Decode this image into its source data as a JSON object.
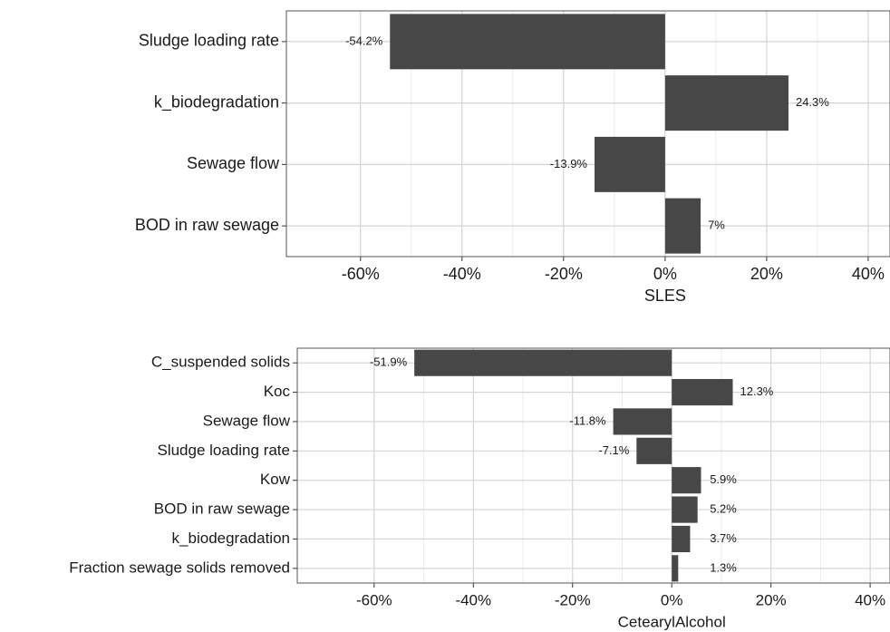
{
  "chart_data": [
    {
      "type": "barh",
      "x_label": "SLES",
      "categories": [
        "Sludge loading rate",
        "k_biodegradation",
        "Sewage flow",
        "BOD in raw sewage"
      ],
      "values": [
        -54.2,
        24.3,
        -13.9,
        7
      ],
      "value_labels": [
        "-54.2%",
        "24.3%",
        "-13.9%",
        "7%"
      ],
      "color": "#474747",
      "xlim": [
        -74.6,
        44.3
      ],
      "xticks": [
        {
          "value": -60,
          "label": "-60%"
        },
        {
          "value": -40,
          "label": "-40%"
        },
        {
          "value": -20,
          "label": "-20%"
        },
        {
          "value": 0,
          "label": "0%"
        },
        {
          "value": 20,
          "label": "20%"
        },
        {
          "value": 40,
          "label": "40%"
        }
      ],
      "grid": true
    },
    {
      "type": "barh",
      "x_label": "CetearylAlcohol",
      "categories": [
        "C_suspended solids",
        "Koc",
        "Sewage flow",
        "Sludge loading rate",
        "Kow",
        "BOD in raw sewage",
        "k_biodegradation",
        "Fraction sewage solids removed"
      ],
      "values": [
        -51.9,
        12.3,
        -11.8,
        -7.1,
        5.9,
        5.2,
        3.7,
        1.3
      ],
      "value_labels": [
        "-51.9%",
        "12.3%",
        "-11.8%",
        "-7.1%",
        "5.9%",
        "5.2%",
        "3.7%",
        "1.3%"
      ],
      "color": "#474747",
      "xlim": [
        -75.5,
        44
      ],
      "xticks": [
        {
          "value": -60,
          "label": "-60%"
        },
        {
          "value": -40,
          "label": "-40%"
        },
        {
          "value": -20,
          "label": "-20%"
        },
        {
          "value": 0,
          "label": "0%"
        },
        {
          "value": 20,
          "label": "20%"
        },
        {
          "value": 40,
          "label": "40%"
        }
      ],
      "grid": true
    }
  ]
}
